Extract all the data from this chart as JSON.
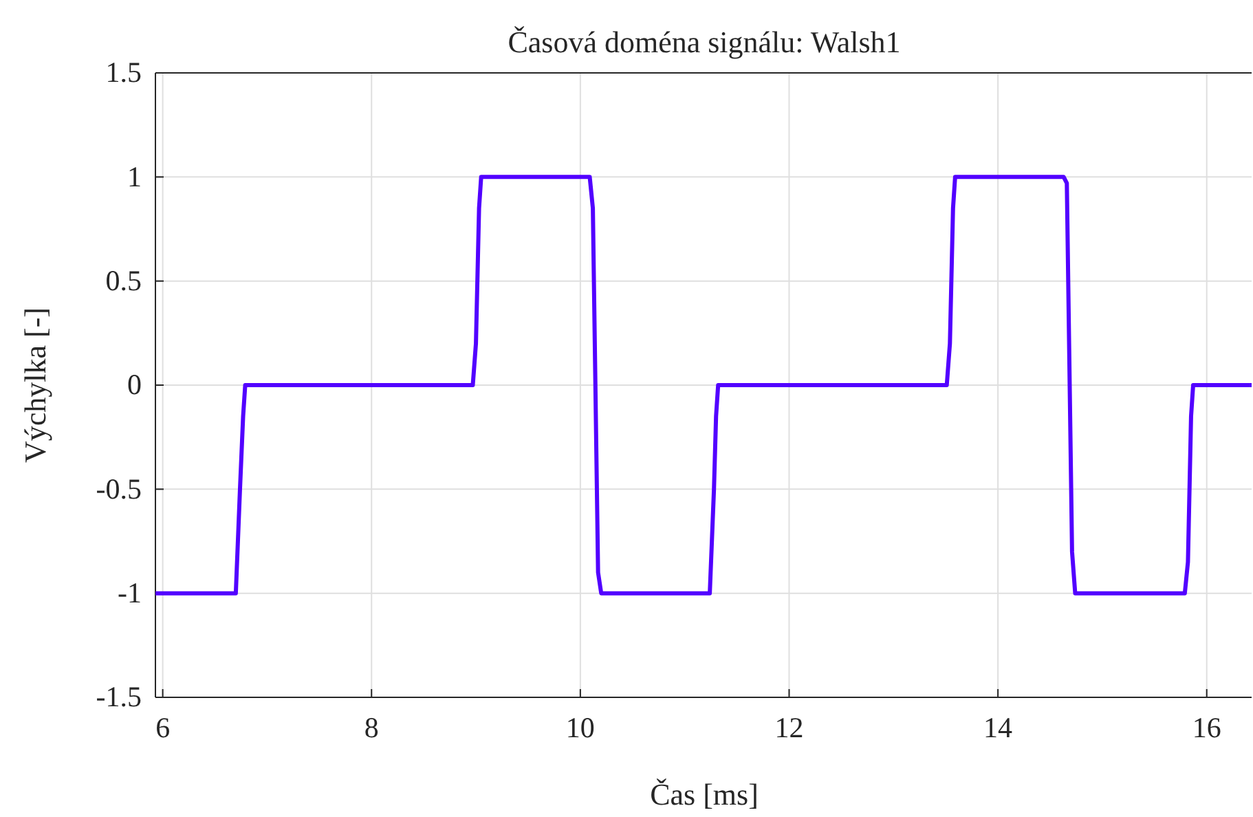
{
  "chart_data": {
    "type": "line",
    "title": "Časová doména signálu: Walsh1",
    "xlabel": "Čas [ms]",
    "ylabel": "Výchylka [-]",
    "xlim": [
      5.93,
      16.43
    ],
    "xticks": [
      6,
      8,
      10,
      12,
      14,
      16
    ],
    "ylim": [
      -1.5,
      1.5
    ],
    "yticks": [
      -1.5,
      -1,
      -0.5,
      0,
      0.5,
      1,
      1.5
    ],
    "grid": true,
    "series": [
      {
        "color": "#5200ff",
        "x": [
          5.93,
          6.7,
          6.74,
          6.77,
          6.79,
          8.97,
          9.0,
          9.03,
          9.05,
          10.09,
          10.12,
          10.17,
          10.2,
          11.24,
          11.28,
          11.3,
          11.32,
          13.51,
          13.54,
          13.57,
          13.59,
          14.63,
          14.66,
          14.71,
          14.74,
          15.79,
          15.82,
          15.85,
          15.87,
          16.43
        ],
        "values": [
          -1,
          -1,
          -0.5,
          -0.15,
          0,
          0,
          0.2,
          0.85,
          1,
          1,
          0.85,
          -0.9,
          -1,
          -1,
          -0.5,
          -0.15,
          0,
          0,
          0.2,
          0.85,
          1,
          1,
          0.97,
          -0.8,
          -1,
          -1,
          -0.85,
          -0.15,
          0,
          0
        ]
      }
    ]
  }
}
